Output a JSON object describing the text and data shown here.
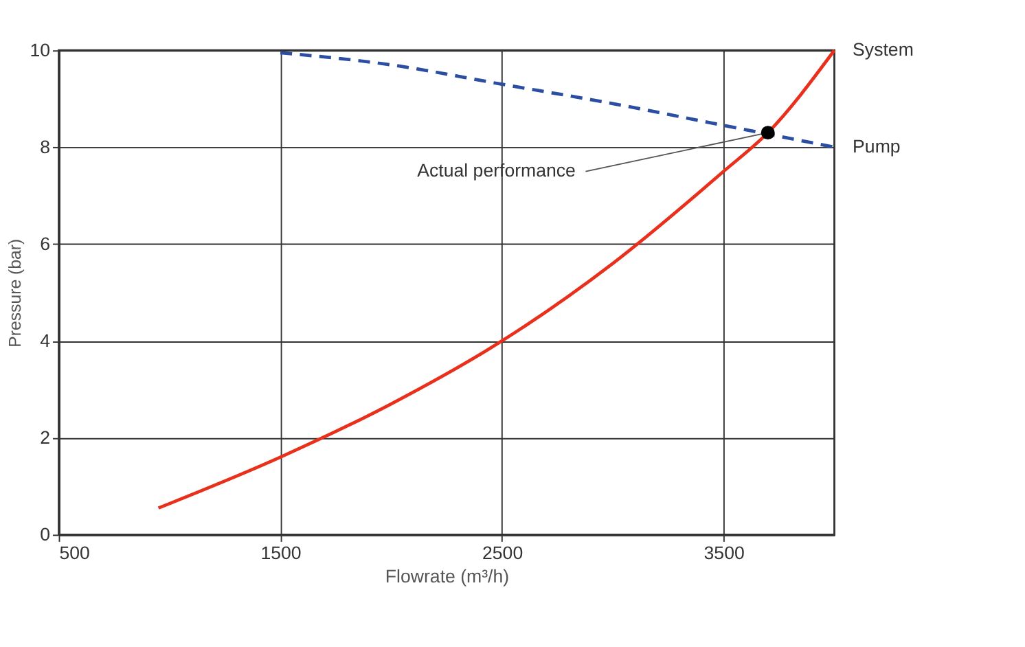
{
  "chart_data": {
    "type": "line",
    "xlabel": "Flowrate (m³/h)",
    "ylabel": "Pressure (bar)",
    "xlim": [
      500,
      4000
    ],
    "xticks": [
      500,
      1500,
      2500,
      3500
    ],
    "ylim": [
      0,
      10
    ],
    "yticks": [
      0,
      2,
      4,
      6,
      8,
      10
    ],
    "grid": true,
    "series": [
      {
        "name": "System",
        "color": "#e8301c",
        "line_style": "solid",
        "x": [
          950,
          1500,
          2000,
          2500,
          3000,
          3500,
          3700,
          4000
        ],
        "values": [
          0.55,
          1.6,
          2.7,
          4.0,
          5.6,
          7.5,
          8.3,
          10.0
        ]
      },
      {
        "name": "Pump",
        "color": "#2b4ea2",
        "line_style": "dashed",
        "x": [
          1500,
          2000,
          2500,
          3000,
          3500,
          4000
        ],
        "values": [
          9.95,
          9.7,
          9.3,
          8.9,
          8.45,
          8.0
        ]
      },
      {
        "type": "scatter",
        "color": "#000000",
        "marker": "circle",
        "x": [
          3700
        ],
        "values": [
          8.3
        ]
      }
    ],
    "annotations": [
      {
        "text": "Actual performance",
        "x": 3700,
        "y": 8.3
      }
    ]
  }
}
